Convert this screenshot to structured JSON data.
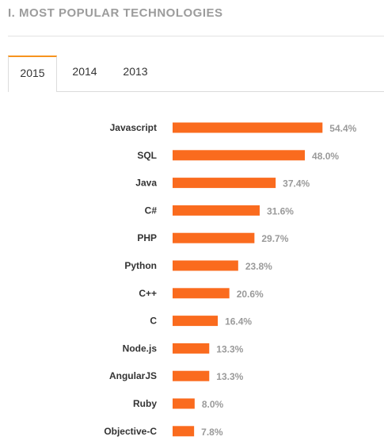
{
  "section": {
    "title": "I. MOST POPULAR TECHNOLOGIES"
  },
  "tabs": [
    {
      "label": "2015",
      "active": true
    },
    {
      "label": "2014",
      "active": false
    },
    {
      "label": "2013",
      "active": false
    }
  ],
  "colors": {
    "bar": "#fa6b1e",
    "accent": "#f7931e",
    "value_text": "#9a9a9a",
    "label_text": "#333333"
  },
  "chart_data": {
    "type": "bar",
    "orientation": "horizontal",
    "categories": [
      "Javascript",
      "SQL",
      "Java",
      "C#",
      "PHP",
      "Python",
      "C++",
      "C",
      "Node.js",
      "AngularJS",
      "Ruby",
      "Objective-C"
    ],
    "values": [
      54.4,
      48.0,
      37.4,
      31.6,
      29.7,
      23.8,
      20.6,
      16.4,
      13.3,
      13.3,
      8.0,
      7.8
    ],
    "value_labels": [
      "54.4%",
      "48.0%",
      "37.4%",
      "31.6%",
      "29.7%",
      "23.8%",
      "20.6%",
      "16.4%",
      "13.3%",
      "13.3%",
      "8.0%",
      "7.8%"
    ],
    "title": "",
    "xlabel": "",
    "ylabel": "",
    "grid": false,
    "legend": "none"
  }
}
